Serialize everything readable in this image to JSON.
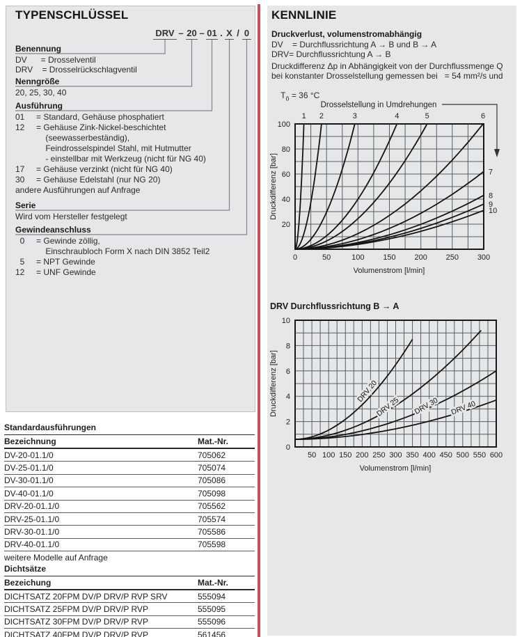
{
  "colors": {
    "divider_red": "#c85050",
    "panel_gray": "#e6e7e8"
  },
  "left": {
    "title": "TYPENSCHLÜSSEL",
    "type_code": {
      "segments": [
        "DRV",
        "–",
        "20",
        "–",
        "01",
        ".",
        "X",
        "/",
        "0"
      ]
    },
    "sections": [
      {
        "heading": "Benennung",
        "lines": [
          "DV      = Drosselventil",
          "DRV    = Drosselrückschlagventil"
        ]
      },
      {
        "heading": "Nenngröße",
        "lines": [
          "20, 25, 30, 40"
        ]
      },
      {
        "heading": "Ausführung",
        "lines": [
          "01     = Standard, Gehäuse phosphatiert",
          "12     = Gehäuse Zink-Nickel-beschichtet",
          "             (seewasserbeständig),",
          "             Feindrosselspindel Stahl, mit Hutmutter",
          "             - einstellbar mit Werkzeug (nicht für NG 40)",
          "17     = Gehäuse verzinkt (nicht für NG 40)",
          "30     = Gehäuse Edelstahl (nur NG 20)",
          "andere Ausführungen auf Anfrage"
        ]
      },
      {
        "heading": "Serie",
        "lines": [
          "Wird vom Hersteller festgelegt"
        ]
      },
      {
        "heading": "Gewindeanschluss",
        "lines": [
          "  0     = Gewinde zöllig,",
          "             Einschraubloch Form X nach DIN 3852 Teil2",
          "  5     = NPT Gewinde",
          "12     = UNF Gewinde"
        ]
      }
    ],
    "standard_table": {
      "title": "Standardausführungen",
      "col1": "Bezeichnung",
      "col2": "Mat.-Nr.",
      "rows": [
        [
          "DV-20-01.1/0",
          "705062"
        ],
        [
          "DV-25-01.1/0",
          "705074"
        ],
        [
          "DV-30-01.1/0",
          "705086"
        ],
        [
          "DV-40-01.1/0",
          "705098"
        ],
        [
          "DRV-20-01.1/0",
          "705562"
        ],
        [
          "DRV-25-01.1/0",
          "705574"
        ],
        [
          "DRV-30-01.1/0",
          "705586"
        ],
        [
          "DRV-40-01.1/0",
          "705598"
        ]
      ],
      "footer": "weitere Modelle auf Anfrage"
    },
    "seal_table": {
      "title": "Dichtsätze",
      "col1": "Bezeichung",
      "col2": "Mat.-Nr.",
      "rows": [
        [
          "DICHTSATZ 20FPM DV/P DRV/P RVP SRV",
          "555094"
        ],
        [
          "DICHTSATZ 25FPM DV/P DRV/P RVP",
          "555095"
        ],
        [
          "DICHTSATZ 30FPM DV/P DRV/P RVP",
          "555096"
        ],
        [
          "DICHTSATZ 40FPM DV/P DRV/P RVP",
          "561456"
        ]
      ]
    }
  },
  "right": {
    "title": "KENNLINIE",
    "subtitle": "Druckverlust, volumenstromabhängig",
    "dv_line": "DV    = Durchflussrichtung A → B und B → A",
    "drv_line": "DRV= Durchflussrichtung A → B",
    "para_line1": "Druckdifferenz Δp in Abhängigkeit von der Durchflussmenge Q",
    "para_line2": "bei konstanter Drosselstellung gemessen bei   = 54 mm²/s und",
    "temp_prefix": "T",
    "temp_sub": "ö",
    "temp_rest": " = 36 °C"
  },
  "chart_data": [
    {
      "type": "line",
      "title": "Drosselstellung in Umdrehungen",
      "xlabel": "Volumenstrom [l/min]",
      "ylabel": "Druckdifferenz [bar]",
      "xlim": [
        0,
        300
      ],
      "ylim": [
        0,
        100
      ],
      "x_tick_step": 50,
      "y_tick_step": 20,
      "x_grid_step": 25,
      "y_grid_step": 10,
      "grid": true,
      "curve_exponent": 1.9,
      "curves_exit_top": [
        {
          "label": "1",
          "q_at_100bar": 14
        },
        {
          "label": "2",
          "q_at_100bar": 42
        },
        {
          "label": "3",
          "q_at_100bar": 95
        },
        {
          "label": "4",
          "q_at_100bar": 162
        },
        {
          "label": "5",
          "q_at_100bar": 210
        },
        {
          "label": "6",
          "q_at_100bar": 299
        }
      ],
      "curves_exit_right": [
        {
          "label": "7",
          "p_at_300lmin": 62
        },
        {
          "label": "8",
          "p_at_300lmin": 43
        },
        {
          "label": "9",
          "p_at_300lmin": 36
        },
        {
          "label": "10",
          "p_at_300lmin": 31
        }
      ]
    },
    {
      "type": "line",
      "title": "DRV Durchflussrichtung B → A",
      "xlabel": "Volumenstrom [l/min]",
      "ylabel": "Druckdifferenz [bar]",
      "xlim": [
        0,
        600
      ],
      "ylim": [
        0,
        10
      ],
      "x_tick_step": 50,
      "y_tick_step": 2,
      "x_grid_step": 25,
      "y_grid_step": 1,
      "grid": true,
      "curve_exponent": 1.9,
      "series": [
        {
          "name": "DRV 20",
          "p_start": 0.6,
          "q_end": 350,
          "p_end": 8.5,
          "points": [
            [
              0,
              0.6
            ],
            [
              100,
              1.5
            ],
            [
              200,
              3.6
            ],
            [
              300,
              6.6
            ],
            [
              350,
              8.5
            ]
          ]
        },
        {
          "name": "DRV 25",
          "p_start": 0.6,
          "q_end": 555,
          "p_end": 9.2,
          "points": [
            [
              0,
              0.6
            ],
            [
              150,
              1.4
            ],
            [
              300,
              3.2
            ],
            [
              450,
              6.1
            ],
            [
              555,
              9.2
            ]
          ]
        },
        {
          "name": "DRV 30",
          "p_start": 0.6,
          "q_end": 600,
          "p_end": 6.0,
          "points": [
            [
              0,
              0.6
            ],
            [
              200,
              1.3
            ],
            [
              400,
              3.1
            ],
            [
              600,
              6.0
            ]
          ]
        },
        {
          "name": "DRV 40",
          "p_start": 0.6,
          "q_end": 600,
          "p_end": 3.7,
          "points": [
            [
              0,
              0.6
            ],
            [
              200,
              1.0
            ],
            [
              400,
              2.0
            ],
            [
              600,
              3.7
            ]
          ]
        }
      ]
    }
  ]
}
